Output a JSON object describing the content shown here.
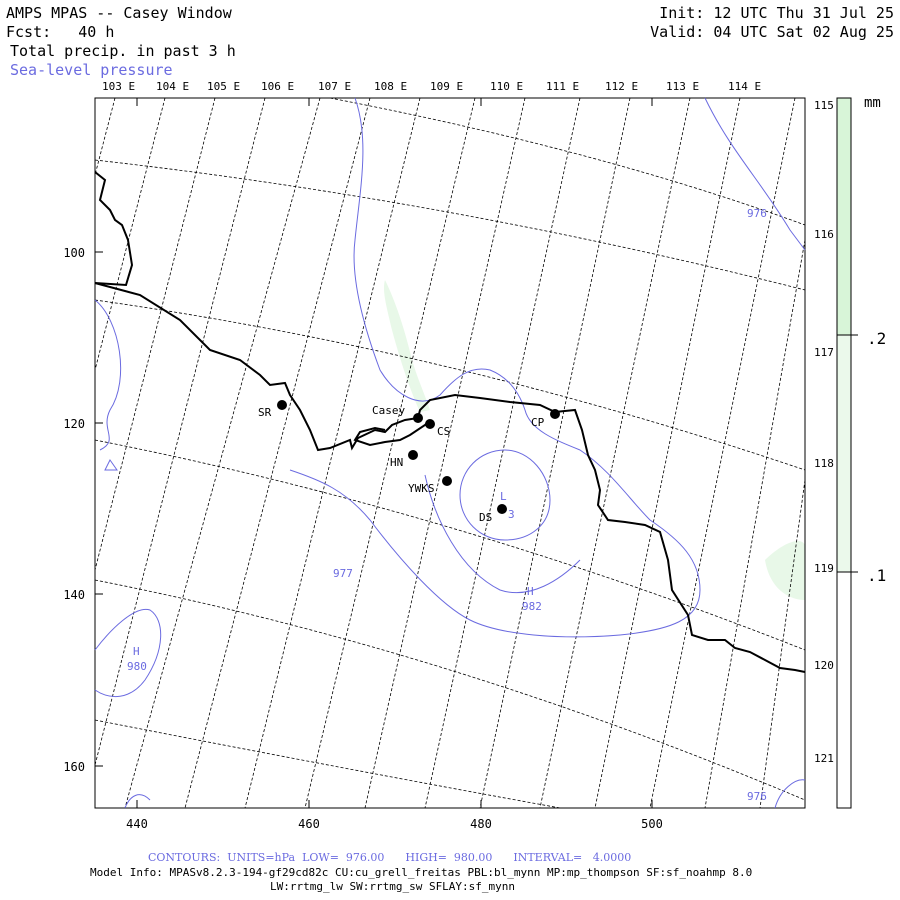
{
  "header": {
    "title": "AMPS MPAS -- Casey Window",
    "forecast": "Fcst:   40 h",
    "field": "Total precip. in past 3 h",
    "overlay": "Sea-level pressure",
    "init": "Init: 12 UTC Thu 31 Jul 25",
    "valid": "Valid: 04 UTC Sat 02 Aug 25"
  },
  "colors": {
    "contour": "#6b6be0",
    "coast": "#000000",
    "precip_fill": "#e8f8e8",
    "label_blue": "#6b6be0"
  },
  "axes": {
    "x_ticks": [
      "440",
      "460",
      "480",
      "500"
    ],
    "y_ticks": [
      "100",
      "120",
      "140",
      "160"
    ],
    "top_lon_labels": [
      "103 E",
      "104 E",
      "105 E",
      "106 E",
      "107 E",
      "108 E",
      "109 E",
      "110 E",
      "111 E",
      "112 E",
      "113 E",
      "114 E"
    ],
    "right_lon_labels": [
      "115 E",
      "116 E",
      "117 E",
      "118 E",
      "119 E",
      "120 E",
      "121 E"
    ]
  },
  "stations": [
    {
      "id": "SR",
      "label": "SR"
    },
    {
      "id": "Casey",
      "label": "Casey"
    },
    {
      "id": "CS",
      "label": "CS"
    },
    {
      "id": "CP",
      "label": "CP"
    },
    {
      "id": "HN",
      "label": "HN"
    },
    {
      "id": "YWKS",
      "label": "YWKS"
    },
    {
      "id": "DS",
      "label": "DS"
    }
  ],
  "contour_labels": {
    "c976_ne": "976",
    "c977": "977",
    "c982": "982",
    "c980": "980",
    "c976_se": "976",
    "h1": "H",
    "h2": "H",
    "l1": "L",
    "l1_value": "3"
  },
  "colorbar": {
    "unit": "mm",
    "labels": [
      ".2",
      ".1"
    ]
  },
  "footer": {
    "contours": "CONTOURS:  UNITS=hPa  LOW=  976.00      HIGH=  980.00      INTERVAL=   4.0000",
    "model_info": "Model Info: MPASv8.2.3-194-gf29cd82c CU:cu_grell_freitas PBL:bl_mynn MP:mp_thompson SF:sf_noahmp 8.0",
    "model_info2": "LW:rrtmg_lw SW:rrtmg_sw SFLAY:sf_mynn"
  }
}
